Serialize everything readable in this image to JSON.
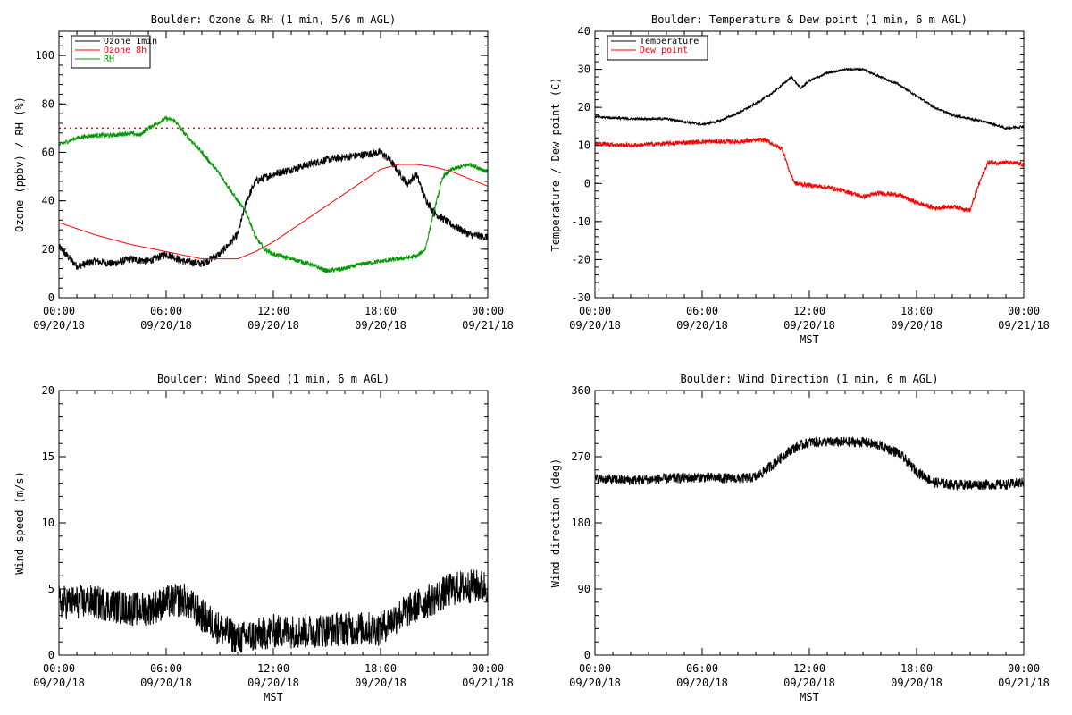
{
  "chart_data": [
    {
      "id": "ozone",
      "type": "line",
      "title": "Boulder: Ozone & RH (1 min, 5/6 m AGL)",
      "xlabel": "",
      "ylabel": "Ozone (ppbv) / RH (%)",
      "x_ticks": [
        {
          "time": "00:00",
          "date": "09/20/18"
        },
        {
          "time": "06:00",
          "date": "09/20/18"
        },
        {
          "time": "12:00",
          "date": "09/20/18"
        },
        {
          "time": "18:00",
          "date": "09/20/18"
        },
        {
          "time": "00:00",
          "date": "09/21/18"
        }
      ],
      "ylim": [
        0,
        110
      ],
      "y_ticks": [
        0,
        20,
        40,
        60,
        80,
        100
      ],
      "reference_line": {
        "y": 70,
        "color": "#ff0000",
        "style": "dotted"
      },
      "legend": "top-left",
      "grid": false,
      "series": [
        {
          "name": "Ozone 1min",
          "color": "#000000",
          "noise": 1.6,
          "x_hours": [
            0,
            1,
            2,
            3,
            4,
            5,
            6,
            7,
            8,
            9,
            10,
            10.5,
            11,
            12,
            13,
            14,
            15,
            16,
            17,
            18,
            18.5,
            19,
            19.5,
            20,
            20.5,
            21,
            22,
            23,
            24
          ],
          "values": [
            21,
            13,
            15,
            14,
            16,
            15,
            18,
            15,
            14,
            18,
            26,
            40,
            48,
            51,
            53,
            55,
            57,
            58,
            59,
            60,
            57,
            52,
            47,
            51,
            41,
            35,
            30,
            26,
            25
          ]
        },
        {
          "name": "Ozone 8h",
          "color": "#ff0000",
          "noise": 0,
          "x_hours": [
            0,
            2,
            4,
            6,
            8,
            9,
            10,
            11,
            12,
            13,
            14,
            15,
            16,
            17,
            18,
            19,
            20,
            21,
            22,
            23,
            24
          ],
          "values": [
            31,
            26,
            22,
            19,
            16,
            16,
            16,
            19,
            23,
            28,
            33,
            38,
            43,
            48,
            53,
            55,
            55,
            54,
            52,
            49,
            46
          ]
        },
        {
          "name": "RH",
          "color": "#009900",
          "noise": 0.9,
          "x_hours": [
            0,
            1,
            2,
            3,
            4,
            4.5,
            5,
            5.5,
            6,
            6.5,
            7,
            8,
            9,
            10,
            10.5,
            11,
            11.5,
            12,
            13,
            14,
            15,
            16,
            17,
            18,
            19,
            20,
            20.5,
            21,
            21.5,
            22,
            23,
            24
          ],
          "values": [
            63,
            66,
            67,
            67,
            68,
            67,
            70,
            72,
            74,
            73,
            68,
            60,
            51,
            40,
            35,
            25,
            20,
            18,
            16,
            14,
            11,
            12,
            14,
            15,
            16,
            17,
            20,
            36,
            50,
            53,
            55,
            52
          ]
        }
      ]
    },
    {
      "id": "temperature",
      "type": "line",
      "title": "Boulder: Temperature & Dew point (1 min, 6 m AGL)",
      "xlabel": "MST",
      "ylabel": "Temperature / Dew point (C)",
      "x_ticks": [
        {
          "time": "00:00",
          "date": "09/20/18"
        },
        {
          "time": "06:00",
          "date": "09/20/18"
        },
        {
          "time": "12:00",
          "date": "09/20/18"
        },
        {
          "time": "18:00",
          "date": "09/20/18"
        },
        {
          "time": "00:00",
          "date": "09/21/18"
        }
      ],
      "ylim": [
        -30,
        40
      ],
      "y_ticks": [
        -30,
        -20,
        -10,
        0,
        10,
        20,
        30,
        40
      ],
      "legend": "top-left",
      "grid": false,
      "series": [
        {
          "name": "Temperature",
          "color": "#000000",
          "noise": 0.3,
          "x_hours": [
            0,
            2,
            4,
            6,
            7,
            8,
            9,
            10,
            11,
            11.5,
            12,
            13,
            14,
            15,
            16,
            17,
            18,
            19,
            20,
            21,
            22,
            23,
            24
          ],
          "values": [
            17.5,
            17,
            17,
            15.5,
            16.5,
            18.5,
            21,
            24,
            28,
            25,
            27,
            29,
            30,
            30,
            28,
            26,
            23,
            20,
            18,
            17,
            16,
            14.5,
            15
          ]
        },
        {
          "name": "Dew point",
          "color": "#ff0000",
          "noise": 0.6,
          "x_hours": [
            0,
            2,
            4,
            6,
            8,
            9.5,
            10.5,
            10.9,
            11.2,
            12,
            13,
            14,
            15,
            16,
            17,
            18,
            19,
            20,
            21,
            21.5,
            22,
            23,
            24
          ],
          "values": [
            10.5,
            10,
            10.5,
            11,
            11,
            11.5,
            9,
            3,
            0,
            -0.5,
            -1,
            -2,
            -3.5,
            -2.5,
            -3,
            -5,
            -6.5,
            -6,
            -7,
            0,
            5.5,
            5.5,
            5
          ]
        }
      ]
    },
    {
      "id": "windspeed",
      "type": "line",
      "title": "Boulder: Wind Speed (1 min, 6 m AGL)",
      "xlabel": "MST",
      "ylabel": "Wind speed (m/s)",
      "x_ticks": [
        {
          "time": "00:00",
          "date": "09/20/18"
        },
        {
          "time": "06:00",
          "date": "09/20/18"
        },
        {
          "time": "12:00",
          "date": "09/20/18"
        },
        {
          "time": "18:00",
          "date": "09/20/18"
        },
        {
          "time": "00:00",
          "date": "09/21/18"
        }
      ],
      "ylim": [
        0,
        20
      ],
      "y_ticks": [
        0,
        5,
        10,
        15,
        20
      ],
      "grid": false,
      "series": [
        {
          "name": "",
          "color": "#000000",
          "noise": 1.3,
          "x_hours": [
            0,
            2,
            4,
            5,
            6,
            7,
            8,
            9,
            10,
            11,
            12,
            14,
            16,
            18,
            19,
            20,
            21,
            22,
            23,
            24
          ],
          "values": [
            4,
            4,
            3.5,
            3.5,
            4,
            4.2,
            3,
            2,
            1.2,
            1.5,
            1.8,
            1.8,
            2,
            2,
            3,
            3.7,
            4.3,
            5,
            5.2,
            5.2
          ]
        }
      ]
    },
    {
      "id": "winddir",
      "type": "line",
      "title": "Boulder: Wind Direction (1 min, 6 m AGL)",
      "xlabel": "MST",
      "ylabel": "Wind direction (deg)",
      "x_ticks": [
        {
          "time": "00:00",
          "date": "09/20/18"
        },
        {
          "time": "06:00",
          "date": "09/20/18"
        },
        {
          "time": "12:00",
          "date": "09/20/18"
        },
        {
          "time": "18:00",
          "date": "09/20/18"
        },
        {
          "time": "00:00",
          "date": "09/21/18"
        }
      ],
      "ylim": [
        0,
        360
      ],
      "y_ticks": [
        0,
        90,
        180,
        270,
        360
      ],
      "grid": false,
      "series": [
        {
          "name": "",
          "color": "#000000",
          "noise": 7,
          "x_hours": [
            0,
            2,
            4,
            6,
            8,
            9,
            10,
            11,
            12,
            13,
            14,
            15,
            16,
            17,
            18,
            19,
            20,
            21,
            22,
            23,
            24
          ],
          "values": [
            240,
            238,
            240,
            242,
            240,
            242,
            260,
            280,
            290,
            290,
            290,
            290,
            285,
            275,
            250,
            235,
            232,
            232,
            232,
            232,
            235
          ]
        }
      ]
    }
  ]
}
